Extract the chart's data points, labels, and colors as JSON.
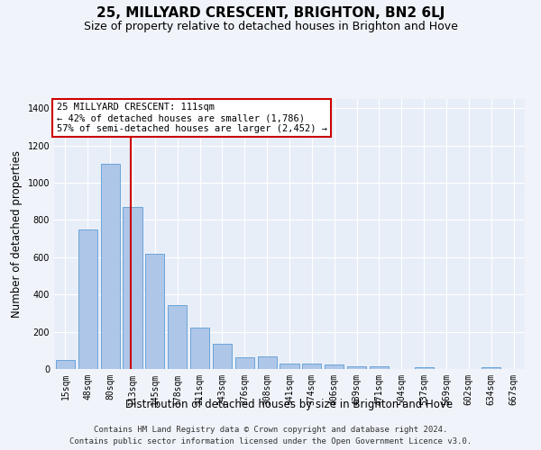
{
  "title": "25, MILLYARD CRESCENT, BRIGHTON, BN2 6LJ",
  "subtitle": "Size of property relative to detached houses in Brighton and Hove",
  "xlabel": "Distribution of detached houses by size in Brighton and Hove",
  "ylabel": "Number of detached properties",
  "footnote1": "Contains HM Land Registry data © Crown copyright and database right 2024.",
  "footnote2": "Contains public sector information licensed under the Open Government Licence v3.0.",
  "bar_labels": [
    "15sqm",
    "48sqm",
    "80sqm",
    "113sqm",
    "145sqm",
    "178sqm",
    "211sqm",
    "243sqm",
    "276sqm",
    "308sqm",
    "341sqm",
    "374sqm",
    "406sqm",
    "439sqm",
    "471sqm",
    "504sqm",
    "537sqm",
    "569sqm",
    "602sqm",
    "634sqm",
    "667sqm"
  ],
  "bar_values": [
    50,
    750,
    1100,
    870,
    620,
    345,
    222,
    135,
    65,
    70,
    30,
    30,
    22,
    15,
    15,
    0,
    12,
    0,
    0,
    12,
    0
  ],
  "bar_color": "#aec6e8",
  "bar_edge_color": "#5b9bd5",
  "vline_x_index": 2.93,
  "property_label": "25 MILLYARD CRESCENT: 111sqm",
  "annotation_line1": "← 42% of detached houses are smaller (1,786)",
  "annotation_line2": "57% of semi-detached houses are larger (2,452) →",
  "annotation_box_color": "#ffffff",
  "annotation_border_color": "#cc0000",
  "vline_color": "#cc0000",
  "ylim": [
    0,
    1450
  ],
  "yticks": [
    0,
    200,
    400,
    600,
    800,
    1000,
    1200,
    1400
  ],
  "fig_background": "#f0f4fa",
  "background_color": "#e8eef8",
  "grid_color": "#ffffff",
  "title_fontsize": 11,
  "subtitle_fontsize": 9,
  "axis_label_fontsize": 8.5,
  "tick_fontsize": 7,
  "annotation_fontsize": 7.5,
  "footnote_fontsize": 6.5
}
